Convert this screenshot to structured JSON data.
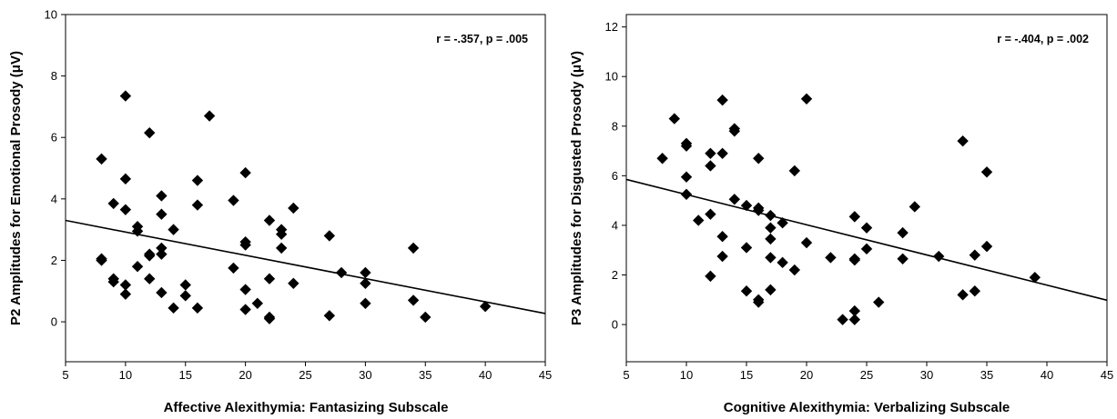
{
  "chart_data": [
    {
      "type": "scatter",
      "xlabel": "Affective Alexithymia: Fantasizing Subscale",
      "ylabel": "P2 Amplitudes for Emotional Prosody (μV)",
      "annotation": "r = -.357, p = .005",
      "xlim": [
        5,
        45
      ],
      "ylim": [
        -1.3,
        10
      ],
      "xticks": [
        5,
        10,
        15,
        20,
        25,
        30,
        35,
        40,
        45
      ],
      "yticks": [
        0,
        2,
        4,
        6,
        8,
        10
      ],
      "marker": "diamond",
      "grid": false,
      "points": [
        [
          8,
          5.3
        ],
        [
          8,
          2.05
        ],
        [
          8,
          2.0
        ],
        [
          9,
          3.85
        ],
        [
          9,
          1.4
        ],
        [
          9,
          1.3
        ],
        [
          10,
          7.35
        ],
        [
          10,
          4.65
        ],
        [
          10,
          3.65
        ],
        [
          10,
          1.2
        ],
        [
          10,
          0.9
        ],
        [
          11,
          3.1
        ],
        [
          11,
          2.95
        ],
        [
          11,
          1.8
        ],
        [
          12,
          6.15
        ],
        [
          12,
          2.2
        ],
        [
          12,
          2.15
        ],
        [
          12,
          1.4
        ],
        [
          13,
          4.1
        ],
        [
          13,
          3.5
        ],
        [
          13,
          2.4
        ],
        [
          13,
          2.2
        ],
        [
          13,
          0.95
        ],
        [
          14,
          3.0
        ],
        [
          14,
          0.45
        ],
        [
          15,
          1.2
        ],
        [
          15,
          0.85
        ],
        [
          16,
          4.6
        ],
        [
          16,
          3.8
        ],
        [
          16,
          0.45
        ],
        [
          17,
          6.7
        ],
        [
          19,
          3.95
        ],
        [
          19,
          1.75
        ],
        [
          20,
          4.85
        ],
        [
          20,
          2.6
        ],
        [
          20,
          2.5
        ],
        [
          20,
          1.05
        ],
        [
          20,
          0.4
        ],
        [
          21,
          0.6
        ],
        [
          22,
          3.3
        ],
        [
          22,
          1.4
        ],
        [
          22,
          0.15
        ],
        [
          22,
          0.1
        ],
        [
          23,
          3.0
        ],
        [
          23,
          2.85
        ],
        [
          23,
          2.4
        ],
        [
          24,
          3.7
        ],
        [
          24,
          1.25
        ],
        [
          27,
          2.8
        ],
        [
          27,
          0.2
        ],
        [
          28,
          1.6
        ],
        [
          30,
          1.6
        ],
        [
          30,
          1.25
        ],
        [
          30,
          0.6
        ],
        [
          34,
          2.4
        ],
        [
          34,
          0.7
        ],
        [
          35,
          0.15
        ],
        [
          40,
          0.5
        ]
      ],
      "trendline": {
        "x": [
          5,
          45
        ],
        "y": [
          3.3,
          0.27
        ]
      }
    },
    {
      "type": "scatter",
      "xlabel": "Cognitive Alexithymia: Verbalizing Subscale",
      "ylabel": "P3 Amplitudes for Disgusted Prosody (μV)",
      "annotation": "r = -.404, p = .002",
      "xlim": [
        5,
        45
      ],
      "ylim": [
        -1.5,
        12.5
      ],
      "xticks": [
        5,
        10,
        15,
        20,
        25,
        30,
        35,
        40,
        45
      ],
      "yticks": [
        0,
        2,
        4,
        6,
        8,
        10,
        12
      ],
      "marker": "diamond",
      "grid": false,
      "points": [
        [
          8,
          6.7
        ],
        [
          9,
          8.3
        ],
        [
          10,
          7.3
        ],
        [
          10,
          7.2
        ],
        [
          10,
          5.95
        ],
        [
          10,
          5.25
        ],
        [
          11,
          4.2
        ],
        [
          12,
          6.9
        ],
        [
          12,
          6.4
        ],
        [
          12,
          4.45
        ],
        [
          12,
          1.95
        ],
        [
          13,
          9.05
        ],
        [
          13,
          6.9
        ],
        [
          13,
          3.55
        ],
        [
          13,
          2.75
        ],
        [
          14,
          7.9
        ],
        [
          14,
          7.8
        ],
        [
          14,
          5.05
        ],
        [
          15,
          4.8
        ],
        [
          15,
          3.1
        ],
        [
          15,
          1.35
        ],
        [
          16,
          6.7
        ],
        [
          16,
          4.7
        ],
        [
          16,
          4.6
        ],
        [
          16,
          1.0
        ],
        [
          16,
          0.9
        ],
        [
          17,
          4.4
        ],
        [
          17,
          3.9
        ],
        [
          17,
          3.45
        ],
        [
          17,
          2.7
        ],
        [
          17,
          1.4
        ],
        [
          18,
          4.1
        ],
        [
          18,
          2.5
        ],
        [
          19,
          6.2
        ],
        [
          19,
          2.2
        ],
        [
          20,
          9.1
        ],
        [
          20,
          3.3
        ],
        [
          22,
          2.7
        ],
        [
          24,
          4.35
        ],
        [
          24,
          2.65
        ],
        [
          24,
          2.6
        ],
        [
          24,
          0.55
        ],
        [
          24,
          0.2
        ],
        [
          23,
          0.2
        ],
        [
          25,
          3.9
        ],
        [
          25,
          3.05
        ],
        [
          26,
          0.9
        ],
        [
          28,
          3.7
        ],
        [
          28,
          2.65
        ],
        [
          29,
          4.75
        ],
        [
          31,
          2.75
        ],
        [
          33,
          7.4
        ],
        [
          33,
          1.2
        ],
        [
          34,
          2.8
        ],
        [
          34,
          1.35
        ],
        [
          35,
          6.15
        ],
        [
          35,
          3.15
        ],
        [
          39,
          1.9
        ]
      ],
      "trendline": {
        "x": [
          5,
          45
        ],
        "y": [
          5.85,
          0.98
        ]
      }
    }
  ]
}
